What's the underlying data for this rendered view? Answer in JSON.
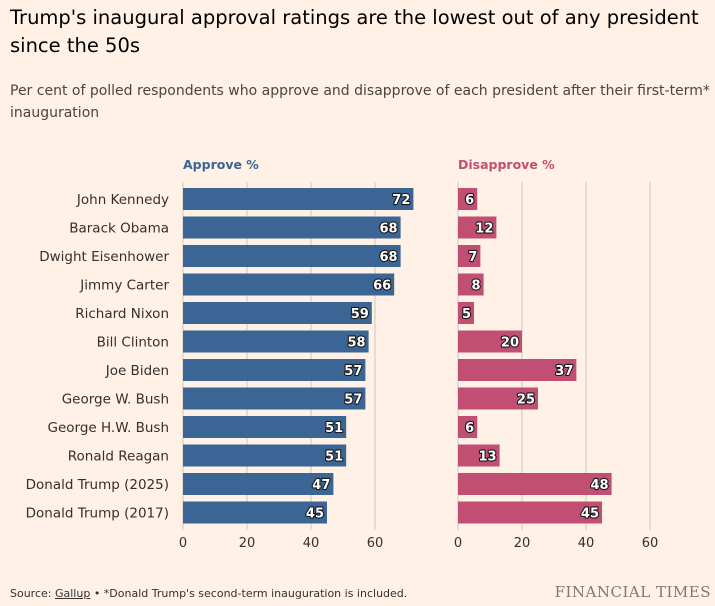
{
  "header": {
    "title": "Trump's inaugural approval ratings are the lowest out of any president since the 50s",
    "subtitle": "Per cent of polled respondents who approve and disapprove of each president after their first-term* inauguration"
  },
  "chart_data": {
    "type": "bar",
    "orientation": "horizontal",
    "categories": [
      "John Kennedy",
      "Barack Obama",
      "Dwight Eisenhower",
      "Jimmy Carter",
      "Richard Nixon",
      "Bill Clinton",
      "Joe Biden",
      "George W. Bush",
      "George H.W. Bush",
      "Ronald Reagan",
      "Donald Trump (2025)",
      "Donald Trump (2017)"
    ],
    "series": [
      {
        "name": "Approve %",
        "color": "#3b6594",
        "values": [
          72,
          68,
          68,
          66,
          59,
          58,
          57,
          57,
          51,
          51,
          47,
          45
        ],
        "ticks": [
          0,
          20,
          40,
          60
        ],
        "xlim": [
          0,
          72
        ]
      },
      {
        "name": "Disapprove %",
        "color": "#c14e73",
        "values": [
          6,
          12,
          7,
          8,
          5,
          20,
          37,
          25,
          6,
          13,
          48,
          45
        ],
        "ticks": [
          0,
          20,
          40,
          60
        ],
        "xlim": [
          0,
          60
        ]
      }
    ],
    "grid": true,
    "data_labels": true
  },
  "footer": {
    "source_prefix": "Source: ",
    "source_name": "Gallup",
    "note": " • *Donald Trump's second-term inauguration is included.",
    "brand": "FINANCIAL TIMES"
  }
}
